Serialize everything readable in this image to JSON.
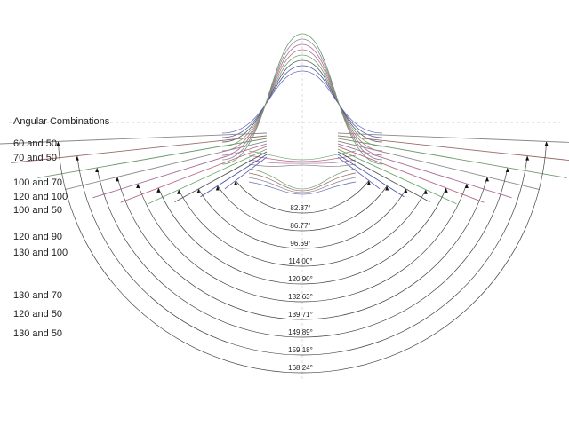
{
  "title": "Angular Combinations",
  "combinations": [
    "60 and 50",
    "70 and 50",
    "100 and 70",
    "120 and 100",
    "100 and 50",
    "120 and 90",
    "130 and 100",
    "130 and 70",
    "120 and 50",
    "130 and 50"
  ],
  "angles": [
    "82.37°",
    "86.77°",
    "96.69°",
    "114.00°",
    "120.90°",
    "132.63°",
    "139.71°",
    "149.89°",
    "159.18°",
    "168.24°"
  ]
}
